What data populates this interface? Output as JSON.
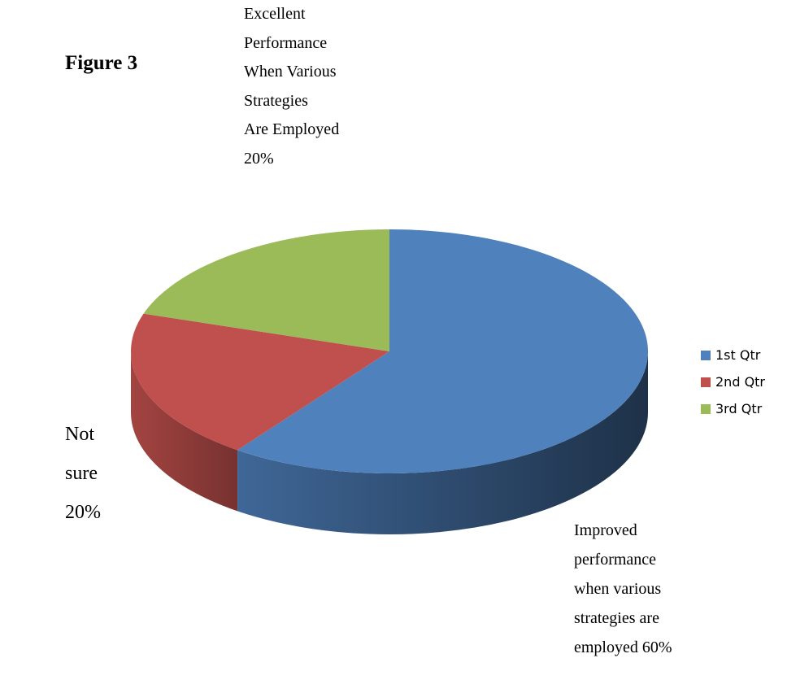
{
  "figure_label": "Figure 3",
  "chart_data": {
    "type": "pie",
    "style": "3d",
    "categories": [
      "1st Qtr",
      "2nd Qtr",
      "3rd Qtr"
    ],
    "values": [
      60,
      20,
      20
    ],
    "colors": [
      "#4F81BD",
      "#C0504D",
      "#9BBB59"
    ],
    "legend": [
      "1st Qtr",
      "2nd Qtr",
      "3rd Qtr"
    ],
    "legend_position": "right",
    "data_labels": [
      {
        "lines": [
          "Improved",
          "performance",
          "when various",
          "strategies are",
          "employed 60%"
        ]
      },
      {
        "lines": [
          "Not",
          "sure",
          "20%"
        ]
      },
      {
        "lines": [
          "Excellent",
          "Performance",
          "When Various",
          "Strategies",
          "Are Employed",
          "20%"
        ]
      }
    ]
  }
}
